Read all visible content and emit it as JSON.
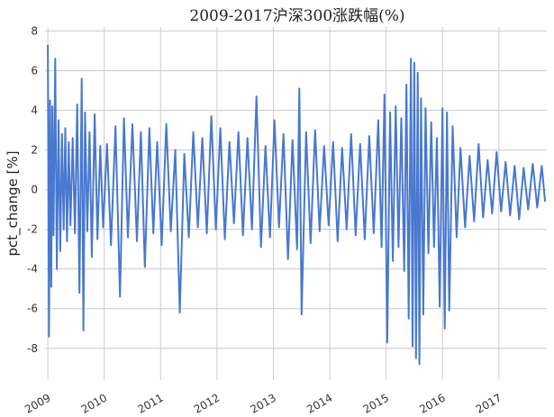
{
  "chart_data": {
    "type": "line",
    "title": "2009-2017沪深300涨跌幅(%)",
    "xlabel": "",
    "ylabel": "pct_change [%]",
    "ylim": [
      -9.6,
      8.2
    ],
    "xlim": [
      2008.95,
      2017.85
    ],
    "yticks": [
      -8,
      -6,
      -4,
      -2,
      0,
      2,
      4,
      6,
      8
    ],
    "xticks": [
      {
        "value": 2009,
        "label": "2009"
      },
      {
        "value": 2010,
        "label": "2010"
      },
      {
        "value": 2011,
        "label": "2011"
      },
      {
        "value": 2012,
        "label": "2012"
      },
      {
        "value": 2013,
        "label": "2013"
      },
      {
        "value": 2014,
        "label": "2014"
      },
      {
        "value": 2015,
        "label": "2015"
      },
      {
        "value": 2016,
        "label": "2016"
      },
      {
        "value": 2017,
        "label": "2017"
      }
    ],
    "grid": true,
    "color": "#4878cf",
    "series": [
      {
        "name": "",
        "x": [
          2009.0,
          2009.02,
          2009.04,
          2009.06,
          2009.08,
          2009.1,
          2009.13,
          2009.16,
          2009.19,
          2009.22,
          2009.25,
          2009.28,
          2009.31,
          2009.34,
          2009.37,
          2009.4,
          2009.44,
          2009.48,
          2009.52,
          2009.56,
          2009.6,
          2009.63,
          2009.66,
          2009.7,
          2009.74,
          2009.78,
          2009.83,
          2009.88,
          2009.93,
          2009.98,
          2010.05,
          2010.12,
          2010.2,
          2010.28,
          2010.35,
          2010.42,
          2010.5,
          2010.58,
          2010.65,
          2010.72,
          2010.8,
          2010.87,
          2010.94,
          2011.02,
          2011.1,
          2011.18,
          2011.26,
          2011.34,
          2011.42,
          2011.5,
          2011.58,
          2011.66,
          2011.74,
          2011.82,
          2011.9,
          2011.98,
          2012.06,
          2012.14,
          2012.22,
          2012.3,
          2012.38,
          2012.46,
          2012.54,
          2012.62,
          2012.7,
          2012.78,
          2012.86,
          2012.94,
          2013.02,
          2013.1,
          2013.18,
          2013.26,
          2013.34,
          2013.42,
          2013.46,
          2013.5,
          2013.58,
          2013.66,
          2013.74,
          2013.82,
          2013.9,
          2013.98,
          2014.06,
          2014.14,
          2014.22,
          2014.3,
          2014.38,
          2014.46,
          2014.54,
          2014.62,
          2014.7,
          2014.78,
          2014.86,
          2014.92,
          2014.97,
          2015.02,
          2015.07,
          2015.12,
          2015.17,
          2015.22,
          2015.27,
          2015.32,
          2015.36,
          2015.4,
          2015.44,
          2015.47,
          2015.5,
          2015.53,
          2015.56,
          2015.59,
          2015.62,
          2015.66,
          2015.7,
          2015.75,
          2015.8,
          2015.85,
          2015.9,
          2015.95,
          2016.0,
          2016.04,
          2016.08,
          2016.12,
          2016.18,
          2016.25,
          2016.32,
          2016.4,
          2016.48,
          2016.56,
          2016.64,
          2016.72,
          2016.8,
          2016.88,
          2016.96,
          2017.04,
          2017.12,
          2017.2,
          2017.28,
          2017.36,
          2017.44,
          2017.52,
          2017.6,
          2017.68,
          2017.76,
          2017.82
        ],
        "values": [
          7.3,
          -7.4,
          4.5,
          -4.9,
          4.2,
          -2.3,
          6.6,
          -4.0,
          3.5,
          -3.1,
          2.8,
          -2.0,
          3.1,
          -2.6,
          2.4,
          -1.8,
          2.6,
          -2.2,
          4.3,
          -5.2,
          5.6,
          -7.1,
          3.9,
          -2.1,
          2.9,
          -3.4,
          3.8,
          -2.5,
          2.2,
          -1.9,
          2.3,
          -2.8,
          3.2,
          -5.4,
          3.6,
          -2.4,
          3.3,
          -2.6,
          2.9,
          -3.9,
          3.1,
          -2.2,
          2.4,
          -2.8,
          3.3,
          -2.1,
          2.0,
          -6.2,
          1.8,
          -2.4,
          2.9,
          -1.9,
          2.6,
          -2.2,
          3.7,
          -2.0,
          3.1,
          -2.5,
          2.4,
          -1.7,
          2.9,
          -2.3,
          2.6,
          -2.0,
          4.7,
          -2.9,
          2.2,
          -2.4,
          3.5,
          -1.9,
          2.8,
          -3.5,
          2.5,
          -3.0,
          5.1,
          -6.3,
          2.9,
          -2.7,
          3.0,
          -2.1,
          2.2,
          -1.8,
          2.4,
          -2.6,
          2.1,
          -2.0,
          2.8,
          -2.3,
          2.3,
          -2.5,
          2.7,
          -2.2,
          3.5,
          -2.9,
          4.8,
          -7.7,
          3.9,
          -3.6,
          4.2,
          -2.9,
          3.6,
          -4.1,
          5.3,
          -6.5,
          6.6,
          -7.9,
          6.4,
          -8.5,
          5.9,
          -8.8,
          4.6,
          -6.3,
          4.1,
          -3.2,
          3.4,
          -2.9,
          2.6,
          -5.9,
          4.1,
          -7.0,
          3.9,
          -6.1,
          3.2,
          -2.4,
          2.1,
          -1.9,
          1.7,
          -1.6,
          2.3,
          -1.4,
          1.5,
          -1.2,
          1.9,
          -1.1,
          1.4,
          -1.3,
          1.2,
          -1.5,
          1.1,
          -1.0,
          1.3,
          -0.9,
          1.2,
          -0.6
        ]
      }
    ]
  }
}
